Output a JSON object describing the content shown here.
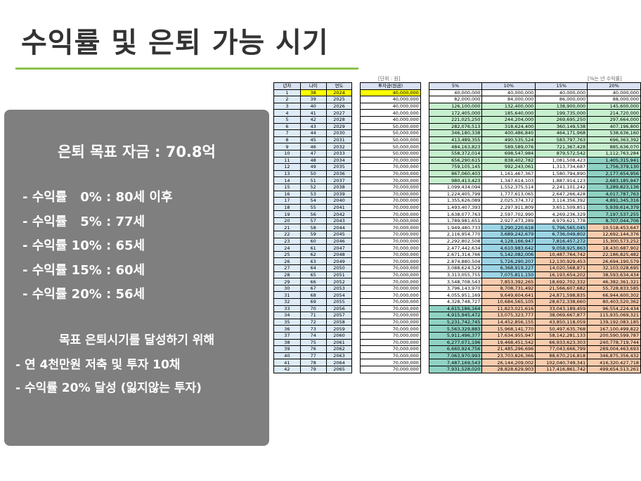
{
  "title": "수익률 및 은퇴 가능 시기",
  "panel": {
    "goal": "은퇴 목표 자금 : 70.8억",
    "rates": [
      "- 수익률   0% : 80세 이후",
      "- 수익률   5% : 77세",
      "- 수익률 10% : 65세",
      "- 수익률 15% : 60세",
      "- 수익률 20% : 56세"
    ],
    "plan_title": "목표 은퇴시기를 달성하기 위해",
    "plan_items": [
      "- 연 4천만원 저축 및 투자 10채",
      "- 수익률 20% 달성 (잃지않는 투자)"
    ]
  },
  "labels": {
    "unit": "[단위 : 원]",
    "rate_note": "[%는 년 수익률]"
  },
  "headers": [
    "년차",
    "나이",
    "연도",
    "투자금(원금)",
    "5%",
    "10%",
    "15%",
    "20%"
  ],
  "colors": {
    "header_bg": "#d9e1f2",
    "highlight_yellow": "#ffff00",
    "title_rule": "#8bc34a",
    "panel_bg": "#7f7f7f",
    "green": "#c6efce",
    "teal": "#8fd1c3",
    "blue": "#9bd4e4",
    "pink": "#f8cbad",
    "pale_blue": "#ddebf7"
  },
  "rows": [
    [
      "1",
      "38",
      "2024",
      "40,000,000",
      "40,000,000",
      "40,000,000",
      "40,000,000",
      "40,000,000"
    ],
    [
      "2",
      "39",
      "2025",
      "40,000,000",
      "82,000,000",
      "84,000,000",
      "86,000,000",
      "88,000,000"
    ],
    [
      "3",
      "40",
      "2026",
      "40,000,000",
      "126,100,000",
      "132,400,000",
      "138,900,000",
      "145,600,000"
    ],
    [
      "4",
      "41",
      "2027",
      "40,000,000",
      "172,405,000",
      "185,640,000",
      "199,735,000",
      "214,720,000"
    ],
    [
      "5",
      "42",
      "2028",
      "40,000,000",
      "221,025,250",
      "244,204,000",
      "269,695,250",
      "297,664,000"
    ],
    [
      "6",
      "43",
      "2029",
      "50,000,000",
      "282,076,513",
      "318,624,400",
      "360,149,538",
      "407,196,800"
    ],
    [
      "7",
      "44",
      "2030",
      "50,000,000",
      "346,180,338",
      "400,486,840",
      "464,171,968",
      "538,636,160"
    ],
    [
      "8",
      "45",
      "2031",
      "50,000,000",
      "413,489,355",
      "490,535,524",
      "583,797,763",
      "696,363,392"
    ],
    [
      "9",
      "46",
      "2032",
      "50,000,000",
      "484,163,823",
      "589,589,076",
      "721,367,428",
      "885,636,070"
    ],
    [
      "10",
      "47",
      "2033",
      "50,000,000",
      "558,372,014",
      "698,547,984",
      "879,572,542",
      "1,112,763,284"
    ],
    [
      "11",
      "48",
      "2034",
      "70,000,000",
      "656,290,615",
      "838,402,782",
      "1,081,508,423",
      "1,405,315,941"
    ],
    [
      "12",
      "49",
      "2035",
      "70,000,000",
      "759,105,145",
      "992,243,061",
      "1,313,734,687",
      "1,756,379,130"
    ],
    [
      "13",
      "50",
      "2036",
      "70,000,000",
      "867,060,403",
      "1,161,467,367",
      "1,580,794,890",
      "2,177,654,956"
    ],
    [
      "14",
      "51",
      "2037",
      "70,000,000",
      "980,413,423",
      "1,347,614,103",
      "1,887,914,123",
      "2,683,185,947"
    ],
    [
      "15",
      "52",
      "2038",
      "70,000,000",
      "1,099,434,094",
      "1,552,375,514",
      "2,241,101,242",
      "3,289,823,136"
    ],
    [
      "16",
      "53",
      "2039",
      "70,000,000",
      "1,224,405,799",
      "1,777,613,065",
      "2,647,266,428",
      "4,017,787,763"
    ],
    [
      "17",
      "54",
      "2040",
      "70,000,000",
      "1,355,626,089",
      "2,025,374,372",
      "3,114,356,392",
      "4,891,345,316"
    ],
    [
      "18",
      "55",
      "2041",
      "70,000,000",
      "1,493,407,393",
      "2,297,911,809",
      "3,651,509,851",
      "5,939,614,379"
    ],
    [
      "19",
      "56",
      "2042",
      "70,000,000",
      "1,638,077,763",
      "2,597,702,990",
      "4,269,236,329",
      "7,197,537,255"
    ],
    [
      "20",
      "57",
      "2043",
      "70,000,000",
      "1,789,981,651",
      "2,927,473,289",
      "4,979,621,778",
      "8,707,044,706"
    ],
    [
      "21",
      "58",
      "2044",
      "70,000,000",
      "1,949,480,733",
      "3,290,220,618",
      "5,796,565,045",
      "10,518,453,647"
    ],
    [
      "22",
      "59",
      "2045",
      "70,000,000",
      "2,116,954,770",
      "3,689,242,679",
      "6,736,049,802",
      "12,692,144,376"
    ],
    [
      "23",
      "60",
      "2046",
      "70,000,000",
      "2,292,802,508",
      "4,128,166,947",
      "7,816,457,272",
      "15,300,573,252"
    ],
    [
      "24",
      "61",
      "2047",
      "70,000,000",
      "2,477,442,634",
      "4,610,983,642",
      "9,058,925,863",
      "18,430,687,902"
    ],
    [
      "25",
      "62",
      "2048",
      "70,000,000",
      "2,671,314,766",
      "5,142,082,006",
      "10,487,764,742",
      "22,186,825,482"
    ],
    [
      "26",
      "63",
      "2049",
      "70,000,000",
      "2,874,880,504",
      "5,726,290,207",
      "12,130,929,453",
      "26,694,190,579"
    ],
    [
      "27",
      "64",
      "2050",
      "70,000,000",
      "3,088,624,529",
      "6,368,919,227",
      "14,020,568,871",
      "32,103,028,695"
    ],
    [
      "28",
      "65",
      "2051",
      "70,000,000",
      "3,313,055,755",
      "7,075,811,150",
      "16,193,654,202",
      "38,593,634,434"
    ],
    [
      "29",
      "66",
      "2052",
      "70,000,000",
      "3,548,708,543",
      "7,853,392,265",
      "18,692,702,332",
      "46,382,361,321"
    ],
    [
      "30",
      "67",
      "2053",
      "70,000,000",
      "3,796,143,970",
      "8,708,731,492",
      "21,566,607,682",
      "55,728,833,585"
    ],
    [
      "31",
      "68",
      "2054",
      "70,000,000",
      "4,055,951,169",
      "9,649,604,641",
      "24,871,598,835",
      "66,944,600,302"
    ],
    [
      "32",
      "69",
      "2055",
      "70,000,000",
      "4,328,748,727",
      "10,684,565,105",
      "28,672,338,660",
      "80,403,520,362"
    ],
    [
      "33",
      "70",
      "2056",
      "70,000,000",
      "4,615,186,164",
      "11,823,021,616",
      "33,043,189,459",
      "96,554,224,434"
    ],
    [
      "34",
      "71",
      "2057",
      "70,000,000",
      "4,915,945,472",
      "13,075,323,777",
      "38,069,667,877",
      "115,935,069,321"
    ],
    [
      "35",
      "72",
      "2058",
      "70,000,000",
      "5,231,742,745",
      "14,452,856,155",
      "43,850,118,059",
      "139,192,083,185"
    ],
    [
      "36",
      "73",
      "2059",
      "70,000,000",
      "5,563,329,883",
      "15,968,141,770",
      "50,497,635,768",
      "167,100,499,822"
    ],
    [
      "37",
      "74",
      "2060",
      "70,000,000",
      "5,911,496,377",
      "17,634,955,947",
      "58,142,281,133",
      "200,590,599,787"
    ],
    [
      "38",
      "75",
      "2061",
      "70,000,000",
      "6,277,071,196",
      "19,468,451,542",
      "66,933,623,303",
      "240,778,719,744"
    ],
    [
      "39",
      "76",
      "2062",
      "70,000,000",
      "6,660,924,756",
      "21,485,296,696",
      "77,043,666,799",
      "289,004,463,693"
    ],
    [
      "40",
      "77",
      "2063",
      "70,000,000",
      "7,063,970,993",
      "23,703,826,366",
      "88,670,216,818",
      "346,875,356,432"
    ],
    [
      "41",
      "78",
      "2064",
      "70,000,000",
      "7,487,169,543",
      "26,144,209,002",
      "102,040,749,341",
      "416,320,427,718"
    ],
    [
      "42",
      "79",
      "2065",
      "70,000,000",
      "7,931,528,020",
      "28,828,629,903",
      "117,416,861,742",
      "499,654,513,261"
    ]
  ]
}
